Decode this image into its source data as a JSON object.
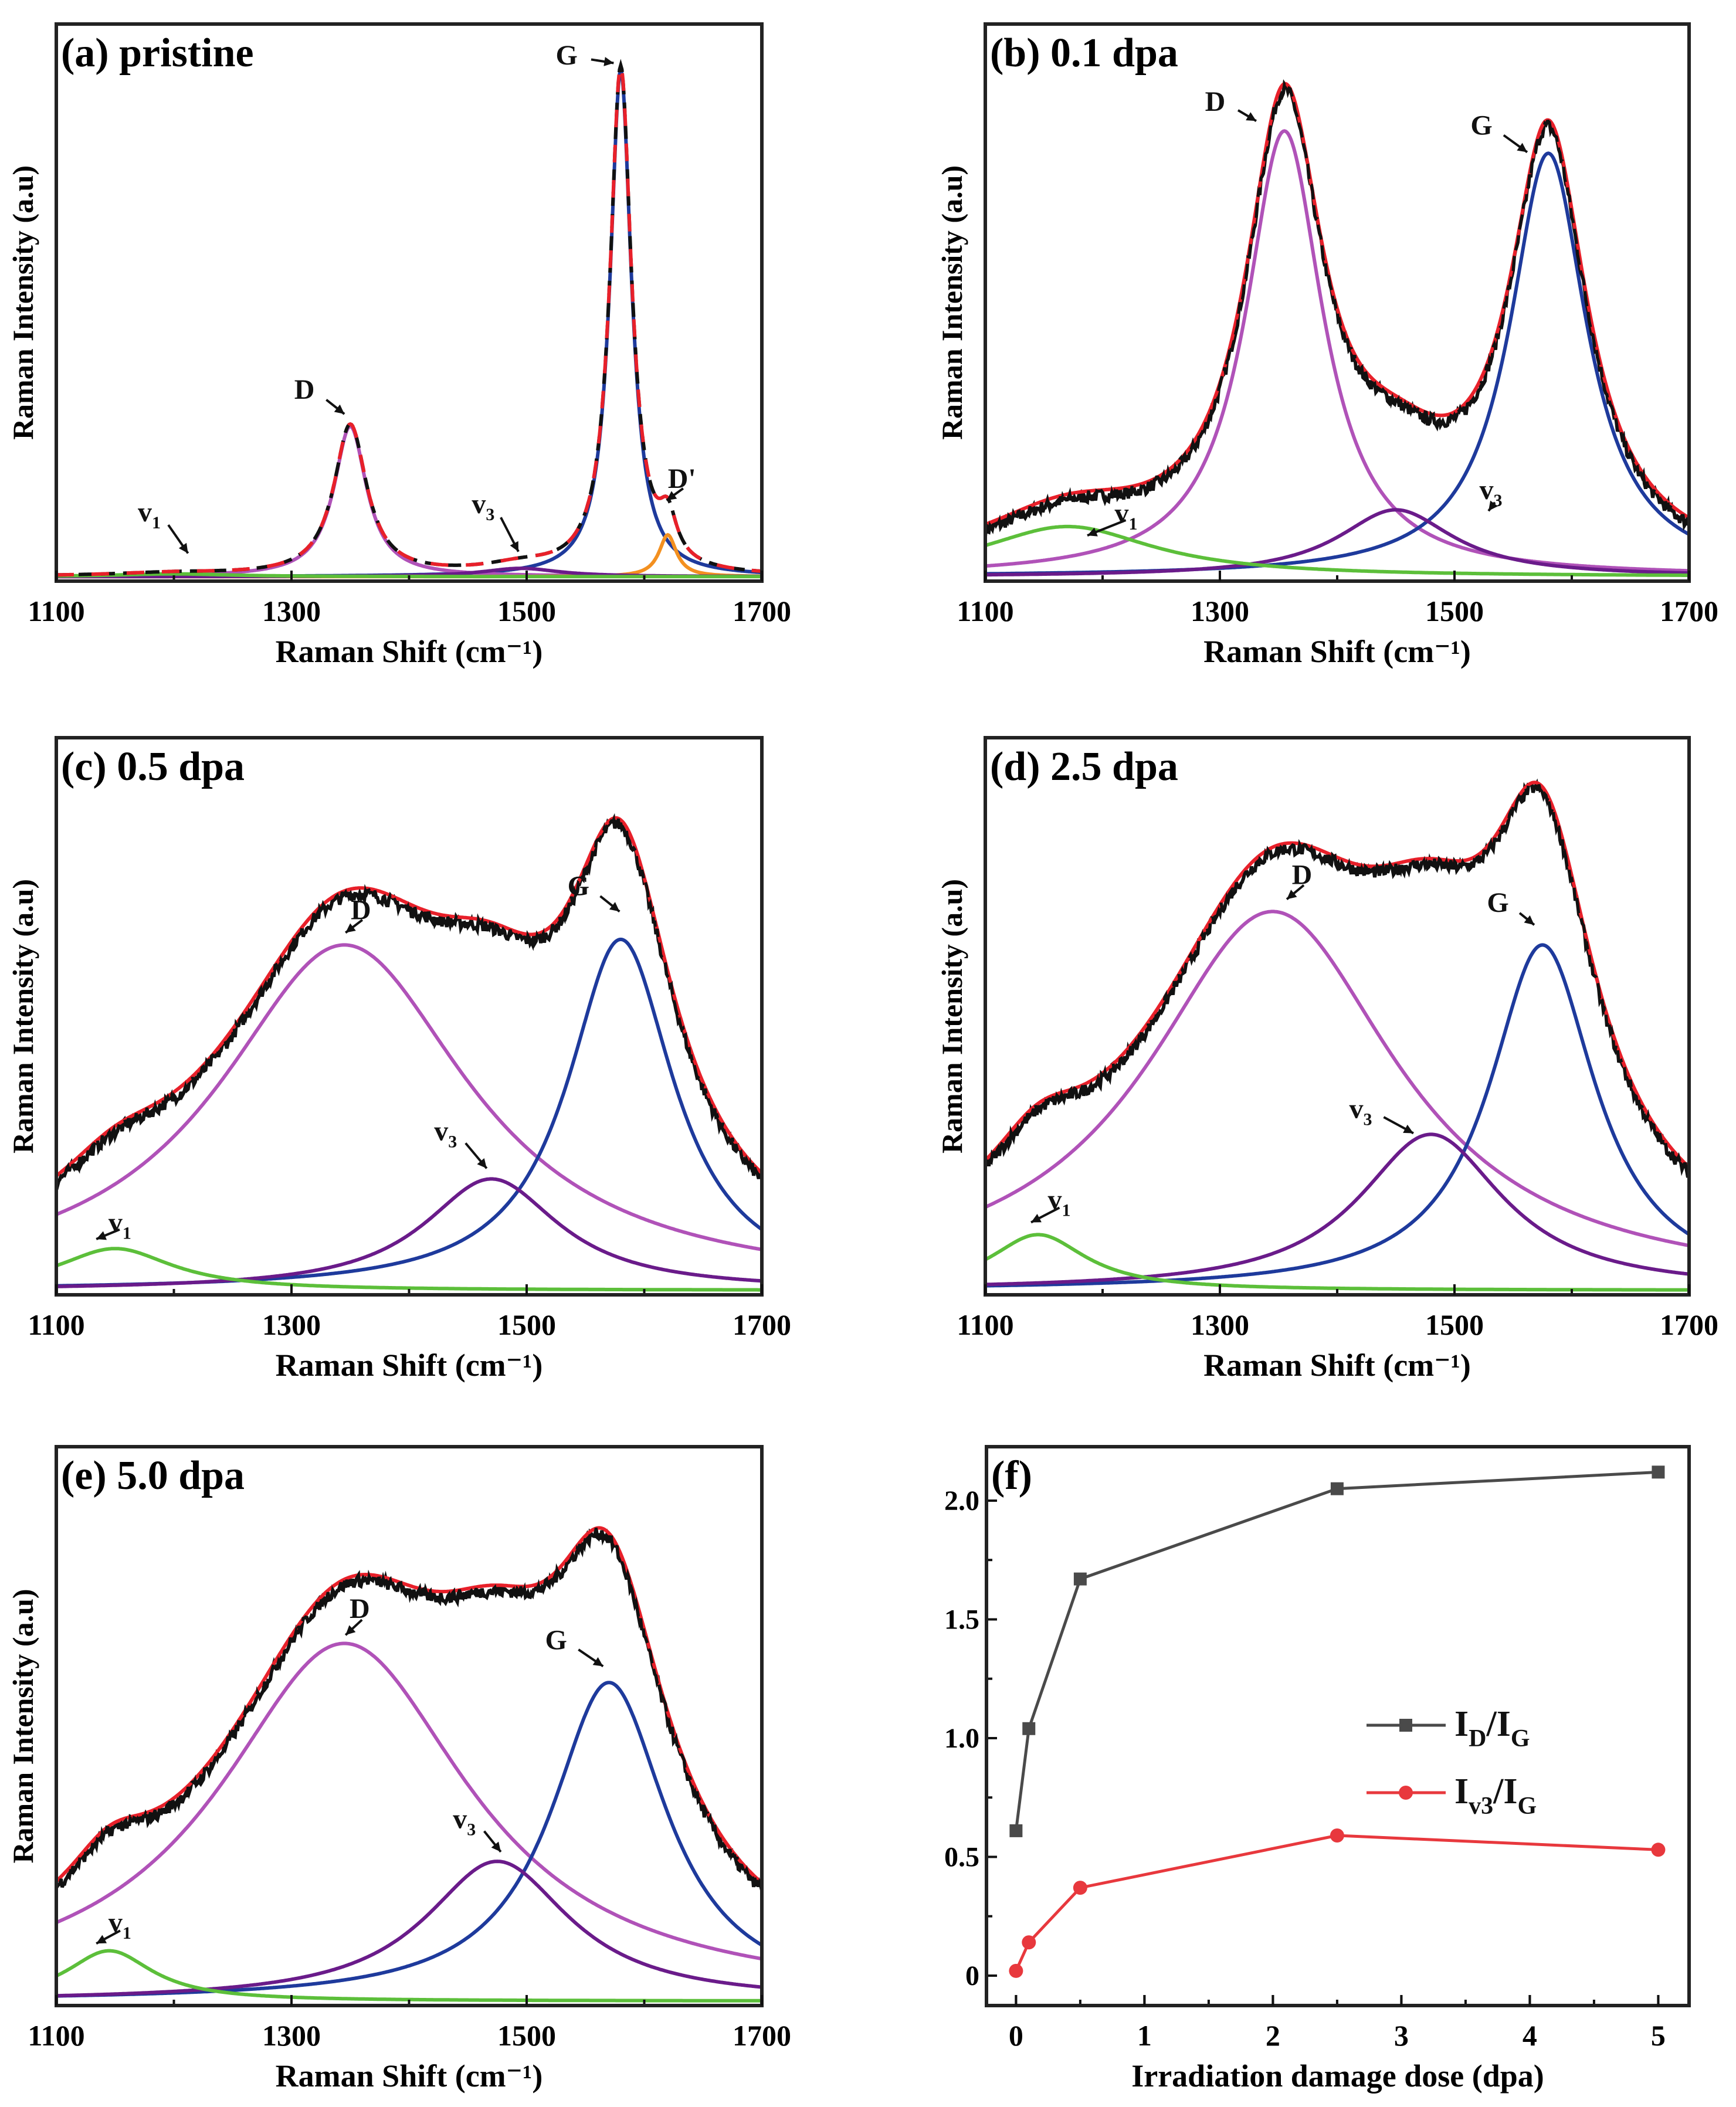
{
  "colors": {
    "fit": "#e8202a",
    "exp": "#111111",
    "D": "#b052b8",
    "G": "#1e3a9c",
    "v3": "#6a1b8a",
    "v1": "#5cbf3a",
    "Dp": "#f39020",
    "idig": "#4a4a4a",
    "iv3ig": "#e8383d"
  },
  "chart_data": [
    {
      "type": "line",
      "title": "(a) pristine",
      "xlabel": "Raman Shift (cm⁻¹)",
      "ylabel": "Raman Intensity (a.u)",
      "xlim": [
        1100,
        1700
      ],
      "ylim": [
        0,
        1
      ],
      "xticks": [
        1100,
        1300,
        1500,
        1700
      ],
      "peaks": [
        {
          "name": "G",
          "center": 1580,
          "amp": 0.91,
          "hwhm": 11,
          "color": "G"
        },
        {
          "name": "D",
          "center": 1350,
          "amp": 0.27,
          "hwhm": 17,
          "color": "D"
        },
        {
          "name": "D'",
          "center": 1620,
          "amp": 0.075,
          "hwhm": 9,
          "color": "Dp"
        },
        {
          "name": "v3",
          "center": 1495,
          "amp": 0.015,
          "hwhm": 40,
          "color": "v3"
        },
        {
          "name": "v1",
          "center": 1200,
          "amp": 0.005,
          "hwhm": 60,
          "color": "v1"
        }
      ],
      "annotations": [
        {
          "text": "G",
          "sub": "",
          "x": 1544,
          "y": 0.94,
          "tx": 1574,
          "ty": 0.93
        },
        {
          "text": "D",
          "sub": "",
          "x": 1321,
          "y": 0.34,
          "tx": 1345,
          "ty": 0.3
        },
        {
          "text": "v",
          "sub": "1",
          "x": 1189,
          "y": 0.12,
          "tx": 1212,
          "ty": 0.05
        },
        {
          "text": "v",
          "sub": "3",
          "x": 1473,
          "y": 0.135,
          "tx": 1493,
          "ty": 0.053
        },
        {
          "text": "D'",
          "sub": "",
          "x": 1642,
          "y": 0.18,
          "tx": 1619,
          "ty": 0.145
        }
      ]
    },
    {
      "type": "line",
      "title": "(b) 0.1 dpa",
      "xlabel": "Raman Shift (cm⁻¹)",
      "ylabel": "Raman Intensity (a.u)",
      "xlim": [
        1100,
        1700
      ],
      "ylim": [
        0,
        1
      ],
      "xticks": [
        1100,
        1300,
        1500,
        1700
      ],
      "peaks": [
        {
          "name": "D",
          "center": 1355,
          "amp": 0.8,
          "hwhm": 40,
          "color": "D"
        },
        {
          "name": "G",
          "center": 1580,
          "amp": 0.76,
          "hwhm": 40,
          "color": "G"
        },
        {
          "name": "v3",
          "center": 1450,
          "amp": 0.12,
          "hwhm": 60,
          "color": "v3"
        },
        {
          "name": "v1",
          "center": 1170,
          "amp": 0.09,
          "hwhm": 90,
          "color": "v1"
        }
      ],
      "annotations": [
        {
          "text": "D",
          "sub": "",
          "x": 1306,
          "y": 0.857,
          "tx": 1331,
          "ty": 0.826
        },
        {
          "text": "G",
          "sub": "",
          "x": 1533,
          "y": 0.814,
          "tx": 1562,
          "ty": 0.77
        },
        {
          "text": "v",
          "sub": "3",
          "x": 1541,
          "y": 0.16,
          "tx": 1529,
          "ty": 0.126
        },
        {
          "text": "v",
          "sub": "1",
          "x": 1230,
          "y": 0.118,
          "tx": 1187,
          "ty": 0.082
        }
      ]
    },
    {
      "type": "line",
      "title": "(c) 0.5 dpa",
      "xlabel": "Raman Shift (cm⁻¹)",
      "ylabel": "Raman Intensity (a.u)",
      "xlim": [
        1100,
        1700
      ],
      "ylim": [
        0,
        1
      ],
      "xticks": [
        1100,
        1300,
        1500,
        1700
      ],
      "peaks": [
        {
          "name": "D",
          "center": 1345,
          "amp": 0.62,
          "hwhm": 130,
          "color": "D"
        },
        {
          "name": "G",
          "center": 1580,
          "amp": 0.63,
          "hwhm": 55,
          "color": "G"
        },
        {
          "name": "v3",
          "center": 1470,
          "amp": 0.2,
          "hwhm": 70,
          "color": "v3"
        },
        {
          "name": "v1",
          "center": 1150,
          "amp": 0.075,
          "hwhm": 60,
          "color": "v1"
        }
      ],
      "annotations": [
        {
          "text": "D",
          "sub": "",
          "x": 1369,
          "y": 0.687,
          "tx": 1346,
          "ty": 0.65
        },
        {
          "text": "G",
          "sub": "",
          "x": 1554,
          "y": 0.73,
          "tx": 1579,
          "ty": 0.688
        },
        {
          "text": "v",
          "sub": "3",
          "x": 1441,
          "y": 0.29,
          "tx": 1466,
          "ty": 0.227
        },
        {
          "text": "v",
          "sub": "1",
          "x": 1164,
          "y": 0.126,
          "tx": 1134,
          "ty": 0.1
        }
      ]
    },
    {
      "type": "line",
      "title": "(d) 2.5 dpa",
      "xlabel": "Raman Shift (cm⁻¹)",
      "ylabel": "Raman Intensity (a.u)",
      "xlim": [
        1100,
        1700
      ],
      "ylim": [
        0,
        1
      ],
      "xticks": [
        1100,
        1300,
        1500,
        1700
      ],
      "peaks": [
        {
          "name": "D",
          "center": 1345,
          "amp": 0.68,
          "hwhm": 130,
          "color": "D"
        },
        {
          "name": "G",
          "center": 1575,
          "amp": 0.62,
          "hwhm": 55,
          "color": "G"
        },
        {
          "name": "v3",
          "center": 1480,
          "amp": 0.28,
          "hwhm": 75,
          "color": "v3"
        },
        {
          "name": "v1",
          "center": 1145,
          "amp": 0.1,
          "hwhm": 50,
          "color": "v1"
        }
      ],
      "annotations": [
        {
          "text": "D",
          "sub": "",
          "x": 1380,
          "y": 0.75,
          "tx": 1357,
          "ty": 0.71
        },
        {
          "text": "G",
          "sub": "",
          "x": 1547,
          "y": 0.7,
          "tx": 1568,
          "ty": 0.664
        },
        {
          "text": "v",
          "sub": "3",
          "x": 1430,
          "y": 0.33,
          "tx": 1465,
          "ty": 0.29
        },
        {
          "text": "v",
          "sub": "1",
          "x": 1173,
          "y": 0.167,
          "tx": 1139,
          "ty": 0.13
        }
      ]
    },
    {
      "type": "line",
      "title": "(e) 5.0 dpa",
      "xlabel": "Raman Shift (cm⁻¹)",
      "ylabel": "Raman Intensity (a.u)",
      "xlim": [
        1100,
        1700
      ],
      "ylim": [
        0,
        1
      ],
      "xticks": [
        1100,
        1300,
        1500,
        1700
      ],
      "peaks": [
        {
          "name": "D",
          "center": 1345,
          "amp": 0.64,
          "hwhm": 130,
          "color": "D"
        },
        {
          "name": "G",
          "center": 1570,
          "amp": 0.57,
          "hwhm": 60,
          "color": "G"
        },
        {
          "name": "v3",
          "center": 1475,
          "amp": 0.25,
          "hwhm": 75,
          "color": "v3"
        },
        {
          "name": "v1",
          "center": 1145,
          "amp": 0.09,
          "hwhm": 45,
          "color": "v1"
        }
      ],
      "annotations": [
        {
          "text": "D",
          "sub": "",
          "x": 1368,
          "y": 0.706,
          "tx": 1346,
          "ty": 0.663
        },
        {
          "text": "G",
          "sub": "",
          "x": 1535,
          "y": 0.65,
          "tx": 1565,
          "ty": 0.607
        },
        {
          "text": "v",
          "sub": "3",
          "x": 1457,
          "y": 0.33,
          "tx": 1478,
          "ty": 0.275
        },
        {
          "text": "v",
          "sub": "1",
          "x": 1164,
          "y": 0.145,
          "tx": 1134,
          "ty": 0.111
        }
      ]
    },
    {
      "type": "line",
      "title": "(f)",
      "xlabel": "Irradiation damage dose (dpa)",
      "ylabel": "",
      "xlim": [
        -0.23,
        5.24
      ],
      "ylim": [
        -0.126,
        2.227
      ],
      "xticks": [
        0,
        1,
        2,
        3,
        4,
        5
      ],
      "yticks": [
        0,
        0.5,
        1.0,
        1.5,
        2.0
      ],
      "ytick_labels": [
        "0",
        "0.5",
        "1.0",
        "1.5",
        "2.0"
      ],
      "legend": "center-right",
      "series": [
        {
          "name": "ID/IG",
          "legend_parts": [
            [
              "I",
              "D"
            ],
            [
              "/I",
              "G"
            ]
          ],
          "color": "idig",
          "marker": "square",
          "x": [
            0,
            0.1,
            0.5,
            2.5,
            5
          ],
          "y": [
            0.61,
            1.04,
            1.67,
            2.05,
            2.12
          ]
        },
        {
          "name": "Iv3/IG",
          "legend_parts": [
            [
              "I",
              "v3"
            ],
            [
              "/I",
              "G"
            ]
          ],
          "color": "iv3ig",
          "marker": "circle",
          "x": [
            0,
            0.1,
            0.5,
            2.5,
            5
          ],
          "y": [
            0.02,
            0.14,
            0.37,
            0.59,
            0.53
          ]
        }
      ]
    }
  ]
}
